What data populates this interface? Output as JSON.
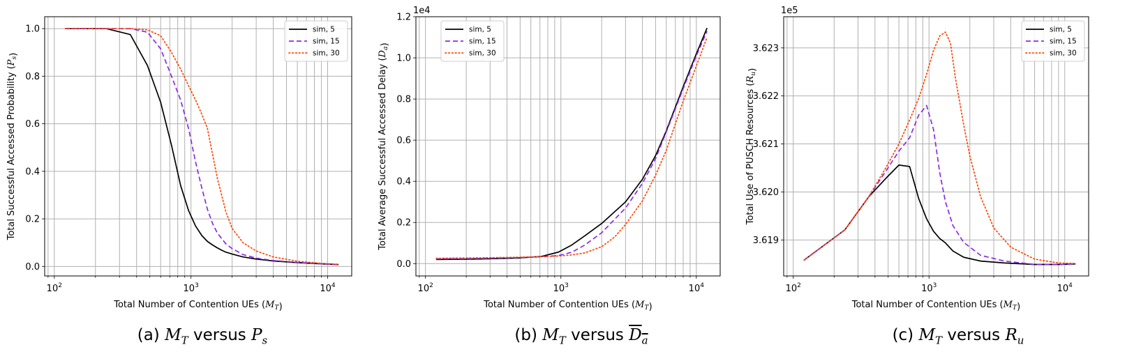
{
  "captions": [
    {
      "prefix": "(a) ",
      "left_sym": "M",
      "left_sub": "T",
      "mid": " versus ",
      "right_sym": "P",
      "right_sub": "s",
      "overline": false
    },
    {
      "prefix": "(b) ",
      "left_sym": "M",
      "left_sub": "T",
      "mid": " versus ",
      "right_sym": "D",
      "right_sub": "a",
      "overline": true
    },
    {
      "prefix": "(c) ",
      "left_sym": "M",
      "left_sub": "T",
      "mid": " versus ",
      "right_sym": "R",
      "right_sub": "u",
      "overline": false
    }
  ],
  "colors": {
    "sim5": "#000000",
    "sim15": "#8a2be2",
    "sim30": "#ff4500",
    "grid": "#b0b0b0"
  },
  "chart_data": [
    {
      "type": "line",
      "xscale": "log",
      "xlim": [
        85,
        15000
      ],
      "ylim": [
        -0.04,
        1.05
      ],
      "xticks": [
        {
          "value": 100,
          "label": "10^2"
        },
        {
          "value": 1000,
          "label": "10^3"
        },
        {
          "value": 10000,
          "label": "10^4"
        }
      ],
      "yticks": [
        {
          "value": 0.0,
          "label": "0.0"
        },
        {
          "value": 0.2,
          "label": "0.2"
        },
        {
          "value": 0.4,
          "label": "0.4"
        },
        {
          "value": 0.6,
          "label": "0.6"
        },
        {
          "value": 0.8,
          "label": "0.8"
        },
        {
          "value": 1.0,
          "label": "1.0"
        }
      ],
      "offset_text": "",
      "xlabel": "Total Number of Contention UEs (M_T)",
      "ylabel": "Total Successful Accessed Probability (P_s)",
      "grid": true,
      "legend": "top-right",
      "series": [
        {
          "name": "sim, 5",
          "style": "solid",
          "x": [
            120,
            240,
            360,
            480,
            600,
            720,
            840,
            960,
            1080,
            1200,
            1320,
            1440,
            1560,
            1680,
            1800,
            2000,
            2400,
            3000,
            4000,
            6000,
            9000,
            12000
          ],
          "y": [
            1.0,
            1.0,
            0.975,
            0.845,
            0.69,
            0.51,
            0.34,
            0.235,
            0.17,
            0.13,
            0.105,
            0.09,
            0.078,
            0.068,
            0.06,
            0.052,
            0.04,
            0.031,
            0.023,
            0.016,
            0.011,
            0.008
          ]
        },
        {
          "name": "sim, 15",
          "style": "dashed",
          "x": [
            120,
            240,
            360,
            480,
            600,
            720,
            840,
            960,
            1080,
            1200,
            1320,
            1440,
            1560,
            1800,
            2000,
            2400,
            3000,
            4000,
            6000,
            9000,
            12000
          ],
          "y": [
            1.0,
            1.0,
            1.0,
            0.985,
            0.915,
            0.8,
            0.7,
            0.58,
            0.44,
            0.33,
            0.24,
            0.18,
            0.14,
            0.095,
            0.075,
            0.05,
            0.035,
            0.025,
            0.017,
            0.011,
            0.008
          ]
        },
        {
          "name": "sim, 30",
          "style": "dotted",
          "x": [
            120,
            240,
            360,
            480,
            600,
            720,
            840,
            960,
            1080,
            1200,
            1320,
            1440,
            1560,
            1800,
            2000,
            2400,
            3000,
            4000,
            6000,
            9000,
            12000
          ],
          "y": [
            1.0,
            1.0,
            1.0,
            0.995,
            0.97,
            0.9,
            0.83,
            0.76,
            0.7,
            0.64,
            0.58,
            0.47,
            0.37,
            0.23,
            0.16,
            0.1,
            0.065,
            0.04,
            0.022,
            0.013,
            0.009
          ]
        }
      ]
    },
    {
      "type": "line",
      "xscale": "log",
      "xlim": [
        85,
        15000
      ],
      "ylim": [
        -600,
        12000
      ],
      "xticks": [
        {
          "value": 100,
          "label": "10^2"
        },
        {
          "value": 1000,
          "label": "10^3"
        },
        {
          "value": 10000,
          "label": "10^4"
        }
      ],
      "yticks": [
        {
          "value": 0,
          "label": "0.0"
        },
        {
          "value": 2000,
          "label": "0.2"
        },
        {
          "value": 4000,
          "label": "0.4"
        },
        {
          "value": 6000,
          "label": "0.6"
        },
        {
          "value": 8000,
          "label": "0.8"
        },
        {
          "value": 10000,
          "label": "1.0"
        },
        {
          "value": 12000,
          "label": "1.2"
        }
      ],
      "offset_text": "1e4",
      "xlabel": "Total Number of Contention UEs (M_T)",
      "ylabel": "Total Average Successful Accessed Delay (D_a)",
      "grid": true,
      "legend": "top-left",
      "series": [
        {
          "name": "sim, 5",
          "style": "solid",
          "x": [
            120,
            240,
            480,
            720,
            960,
            1200,
            1500,
            2000,
            3000,
            4000,
            5000,
            6000,
            8000,
            10000,
            12000
          ],
          "y": [
            200,
            220,
            270,
            350,
            560,
            900,
            1350,
            1950,
            3000,
            4100,
            5250,
            6450,
            8600,
            10200,
            11450
          ]
        },
        {
          "name": "sim, 15",
          "style": "dashed",
          "x": [
            120,
            240,
            480,
            720,
            960,
            1200,
            1500,
            2000,
            3000,
            4000,
            5000,
            6000,
            8000,
            10000,
            12000
          ],
          "y": [
            230,
            250,
            290,
            330,
            390,
            550,
            900,
            1500,
            2700,
            3900,
            5100,
            6400,
            8500,
            10100,
            11300
          ]
        },
        {
          "name": "sim, 30",
          "style": "dotted",
          "x": [
            120,
            240,
            480,
            720,
            960,
            1200,
            1500,
            2000,
            2500,
            3000,
            4000,
            5000,
            6000,
            8000,
            10000,
            12000
          ],
          "y": [
            260,
            280,
            310,
            340,
            370,
            420,
            520,
            820,
            1300,
            1900,
            3050,
            4300,
            5500,
            7900,
            9600,
            11000
          ]
        }
      ]
    },
    {
      "type": "line",
      "xscale": "log",
      "xlim": [
        85,
        15000
      ],
      "ylim": [
        361825,
        362365
      ],
      "xticks": [
        {
          "value": 100,
          "label": "10^2"
        },
        {
          "value": 1000,
          "label": "10^3"
        },
        {
          "value": 10000,
          "label": "10^4"
        }
      ],
      "yticks": [
        {
          "value": 361900,
          "label": "3.619"
        },
        {
          "value": 362000,
          "label": "3.620"
        },
        {
          "value": 362100,
          "label": "3.621"
        },
        {
          "value": 362200,
          "label": "3.622"
        },
        {
          "value": 362300,
          "label": "3.623"
        }
      ],
      "offset_text": "1e5",
      "xlabel": "Total Number of Contention UEs (M_T)",
      "ylabel": "Total Use of PUSCH Resources (R_u)",
      "grid": true,
      "legend": "top-right",
      "series": [
        {
          "name": "sim, 5",
          "style": "solid",
          "x": [
            120,
            240,
            360,
            480,
            600,
            720,
            840,
            960,
            1080,
            1200,
            1320,
            1500,
            1800,
            2400,
            3600,
            6000,
            9000,
            12000
          ],
          "y": [
            361858,
            361921,
            361990,
            362028,
            362056,
            362053,
            361986,
            361944,
            361918,
            361903,
            361894,
            361877,
            361864,
            361856,
            361852,
            361849,
            361849,
            361850
          ]
        },
        {
          "name": "sim, 15",
          "style": "dashed",
          "x": [
            120,
            240,
            360,
            480,
            600,
            720,
            840,
            960,
            1080,
            1200,
            1320,
            1500,
            1800,
            2400,
            3600,
            6000,
            9000,
            12000
          ],
          "y": [
            361858,
            361921,
            361990,
            362043,
            362085,
            362113,
            362160,
            362180,
            362130,
            362040,
            361980,
            361930,
            361895,
            361868,
            361856,
            361849,
            361849,
            361850
          ]
        },
        {
          "name": "sim, 30",
          "style": "dotted",
          "x": [
            120,
            240,
            360,
            480,
            600,
            720,
            840,
            960,
            1080,
            1200,
            1320,
            1440,
            1560,
            1800,
            2000,
            2400,
            3000,
            4000,
            6000,
            9000,
            12000
          ],
          "y": [
            361858,
            361921,
            361990,
            362050,
            362100,
            362150,
            362195,
            362245,
            362295,
            362325,
            362333,
            362310,
            362240,
            362140,
            362075,
            361990,
            361925,
            361885,
            361860,
            361852,
            361851
          ]
        }
      ]
    }
  ]
}
